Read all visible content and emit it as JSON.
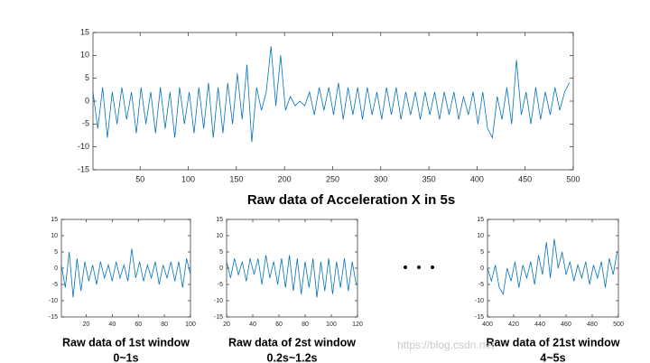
{
  "chart_data": [
    {
      "type": "line",
      "title": "Raw data of Acceleration X in 5s",
      "x": [
        1,
        6,
        11,
        16,
        21,
        26,
        31,
        36,
        41,
        46,
        51,
        56,
        61,
        66,
        71,
        76,
        81,
        86,
        91,
        96,
        101,
        106,
        111,
        116,
        121,
        126,
        131,
        136,
        141,
        146,
        151,
        156,
        161,
        166,
        171,
        176,
        181,
        186,
        191,
        196,
        201,
        206,
        211,
        216,
        221,
        226,
        231,
        236,
        241,
        246,
        251,
        256,
        261,
        266,
        271,
        276,
        281,
        286,
        291,
        296,
        301,
        306,
        311,
        316,
        321,
        326,
        331,
        336,
        341,
        346,
        351,
        356,
        361,
        366,
        371,
        376,
        381,
        386,
        391,
        396,
        401,
        406,
        411,
        416,
        421,
        426,
        431,
        436,
        441,
        446,
        451,
        456,
        461,
        466,
        471,
        476,
        481,
        486,
        491,
        496
      ],
      "series": [
        {
          "color": "#0072bd",
          "values": [
            2,
            -6,
            3,
            -8,
            2,
            -5,
            3,
            -4,
            2,
            -7,
            3,
            -5,
            2,
            -7,
            3,
            -6,
            2,
            -8,
            3,
            -5,
            2,
            -7,
            3,
            -6,
            4,
            -8,
            3,
            -7,
            4,
            -5,
            6,
            -4,
            8,
            -9,
            3,
            -2,
            2,
            12,
            -1,
            10,
            -2,
            1,
            -1,
            0,
            -1,
            2,
            -3,
            3,
            -2,
            3,
            -3,
            4,
            -4,
            3,
            -3,
            3,
            -4,
            3,
            -3,
            2,
            -4,
            3,
            -3,
            3,
            -4,
            2,
            -3,
            2,
            -4,
            2,
            -3,
            2,
            -4,
            2,
            -3,
            2,
            -4,
            1,
            -3,
            2,
            -5,
            2,
            -6,
            -8,
            1,
            -4,
            3,
            -5,
            9,
            -3,
            2,
            -5,
            3,
            -4,
            2,
            -3,
            3,
            -2,
            2,
            4
          ]
        }
      ],
      "xlim": [
        1,
        500
      ],
      "xticks": [
        50,
        100,
        150,
        200,
        250,
        300,
        350,
        400,
        450,
        500
      ],
      "ylim": [
        -15,
        15
      ],
      "yticks": [
        -15,
        -10,
        -5,
        0,
        5,
        10,
        15
      ]
    },
    {
      "type": "line",
      "title": "Raw data of 1st window",
      "subtitle": "0~1s",
      "x": [
        1,
        4,
        7,
        10,
        13,
        16,
        19,
        22,
        25,
        28,
        31,
        34,
        37,
        40,
        43,
        46,
        49,
        52,
        55,
        58,
        61,
        64,
        67,
        70,
        73,
        76,
        79,
        82,
        85,
        88,
        91,
        94,
        97,
        100
      ],
      "series": [
        {
          "color": "#0072bd",
          "values": [
            1,
            -6,
            5,
            -9,
            3,
            -7,
            2,
            -4,
            1,
            -5,
            2,
            -3,
            1,
            -4,
            2,
            -3,
            1,
            -4,
            6,
            -3,
            2,
            -4,
            1,
            -3,
            2,
            -5,
            1,
            -3,
            2,
            -4,
            2,
            -6,
            3,
            -2
          ]
        }
      ],
      "xlim": [
        1,
        100
      ],
      "xticks": [
        20,
        40,
        60,
        80,
        100
      ],
      "ylim": [
        -15,
        15
      ],
      "yticks": [
        -15,
        -10,
        -5,
        0,
        5,
        10,
        15
      ]
    },
    {
      "type": "line",
      "title": "Raw data of 2st window",
      "subtitle": "0.2s~1.2s",
      "x": [
        20,
        23,
        26,
        29,
        32,
        35,
        38,
        41,
        44,
        47,
        50,
        53,
        56,
        59,
        62,
        65,
        68,
        71,
        74,
        77,
        80,
        83,
        86,
        89,
        92,
        95,
        98,
        101,
        104,
        107,
        110,
        113,
        116,
        119
      ],
      "series": [
        {
          "color": "#0072bd",
          "values": [
            2,
            -3,
            3,
            -2,
            2,
            -4,
            3,
            -2,
            3,
            -5,
            4,
            -3,
            2,
            -5,
            3,
            -6,
            4,
            -7,
            3,
            -8,
            2,
            -6,
            3,
            -9,
            2,
            -7,
            3,
            -8,
            2,
            -6,
            3,
            -7,
            2,
            -5
          ]
        }
      ],
      "xlim": [
        20,
        120
      ],
      "xticks": [
        20,
        40,
        60,
        80,
        100,
        120
      ],
      "ylim": [
        -15,
        15
      ],
      "yticks": [
        -15,
        -10,
        -5,
        0,
        5,
        10,
        15
      ]
    },
    {
      "type": "line",
      "title": "Raw data of 21st window",
      "subtitle": "4~5s",
      "x": [
        400,
        403,
        406,
        409,
        412,
        415,
        418,
        421,
        424,
        427,
        430,
        433,
        436,
        439,
        442,
        445,
        448,
        451,
        454,
        457,
        460,
        463,
        466,
        469,
        472,
        475,
        478,
        481,
        484,
        487,
        490,
        493,
        496,
        499
      ],
      "series": [
        {
          "color": "#0072bd",
          "values": [
            0,
            -4,
            1,
            -6,
            -8,
            0,
            -4,
            2,
            -6,
            1,
            -3,
            2,
            -5,
            4,
            -2,
            8,
            -3,
            9,
            0,
            5,
            -2,
            2,
            -4,
            1,
            -3,
            2,
            -5,
            1,
            -3,
            2,
            -6,
            3,
            -2,
            5
          ]
        }
      ],
      "xlim": [
        400,
        500
      ],
      "xticks": [
        400,
        420,
        440,
        460,
        480,
        500
      ],
      "ylim": [
        -15,
        15
      ],
      "yticks": [
        -15,
        -10,
        -5,
        0,
        5,
        10,
        15
      ]
    }
  ],
  "watermark": "https://blog.csdn.net"
}
